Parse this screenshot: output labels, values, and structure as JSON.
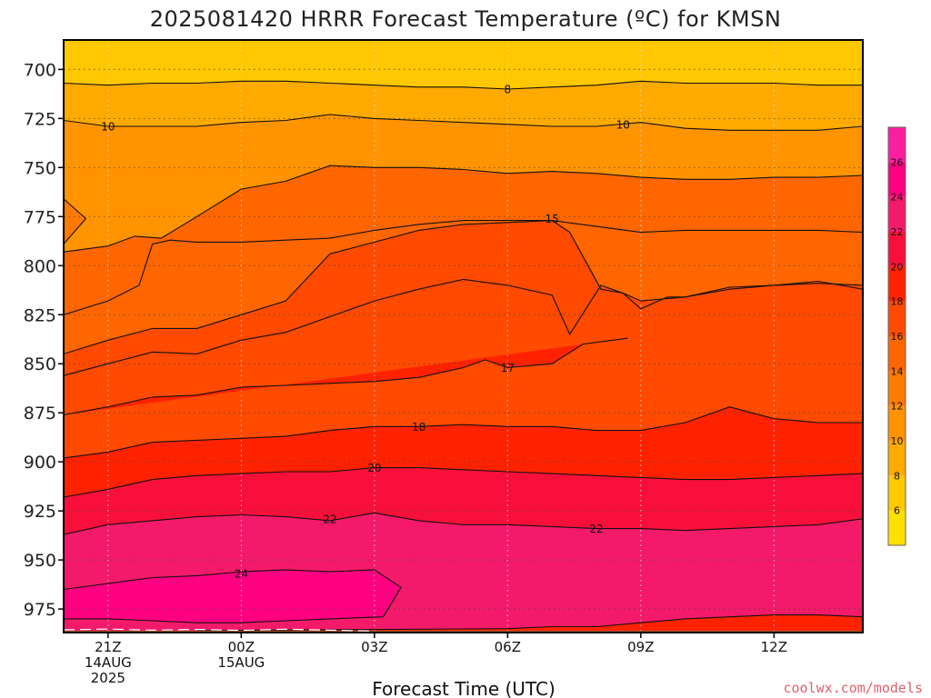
{
  "title": "2025081420 HRRR Forecast Temperature (ºC) for KMSN",
  "credit": "coolwx.com/models",
  "chart_data": {
    "type": "heatmap",
    "title": "2025081420 HRRR Forecast Temperature (ºC) for KMSN",
    "xlabel": "Forecast Time (UTC)",
    "ylabel": "",
    "y_axis_type": "pressure (hPa), inverted",
    "x_ticks": [
      {
        "hour": 1,
        "lines": [
          "21Z",
          "14AUG",
          "2025"
        ]
      },
      {
        "hour": 4,
        "lines": [
          "00Z",
          "15AUG"
        ]
      },
      {
        "hour": 7,
        "lines": [
          "03Z"
        ]
      },
      {
        "hour": 10,
        "lines": [
          "06Z"
        ]
      },
      {
        "hour": 13,
        "lines": [
          "09Z"
        ]
      },
      {
        "hour": 16,
        "lines": [
          "12Z"
        ]
      }
    ],
    "xlim": [
      0,
      18
    ],
    "y_ticks": [
      700,
      725,
      750,
      775,
      800,
      825,
      850,
      875,
      900,
      925,
      950,
      975
    ],
    "ylim": [
      987,
      685
    ],
    "grid": true,
    "ground_color": "#a0522d",
    "colorbar": {
      "ticks": [
        6,
        8,
        10,
        12,
        14,
        16,
        18,
        20,
        22,
        24,
        26
      ],
      "range": [
        4,
        28
      ],
      "bins": [
        {
          "from": 4,
          "to": 6,
          "color": "#ffe000"
        },
        {
          "from": 6,
          "to": 8,
          "color": "#ffc800"
        },
        {
          "from": 8,
          "to": 10,
          "color": "#ffaa00"
        },
        {
          "from": 10,
          "to": 12,
          "color": "#ff9400"
        },
        {
          "from": 12,
          "to": 14,
          "color": "#ff7a00"
        },
        {
          "from": 14,
          "to": 16,
          "color": "#ff6600"
        },
        {
          "from": 16,
          "to": 18,
          "color": "#ff4a00"
        },
        {
          "from": 18,
          "to": 20,
          "color": "#ff2200"
        },
        {
          "from": 20,
          "to": 22,
          "color": "#f8103a"
        },
        {
          "from": 22,
          "to": 24,
          "color": "#f41a6a"
        },
        {
          "from": 24,
          "to": 26,
          "color": "#ff0080"
        },
        {
          "from": 26,
          "to": 28,
          "color": "#ff1ea0"
        }
      ]
    },
    "contours": [
      {
        "level": 8,
        "points": [
          [
            0,
            707
          ],
          [
            1,
            708
          ],
          [
            2,
            707
          ],
          [
            3,
            707
          ],
          [
            4,
            706
          ],
          [
            5,
            706
          ],
          [
            6,
            707
          ],
          [
            7,
            708
          ],
          [
            8,
            709
          ],
          [
            9,
            709
          ],
          [
            10,
            710
          ],
          [
            11,
            709
          ],
          [
            12,
            708
          ],
          [
            13,
            706
          ],
          [
            14,
            707
          ],
          [
            15,
            707
          ],
          [
            16,
            707
          ],
          [
            17,
            708
          ],
          [
            18,
            708
          ]
        ],
        "labels": [
          {
            "x": 10,
            "y": 710
          }
        ]
      },
      {
        "level": 10,
        "points": [
          [
            0,
            726
          ],
          [
            1,
            729
          ],
          [
            2,
            729
          ],
          [
            3,
            729
          ],
          [
            4,
            727
          ],
          [
            5,
            726
          ],
          [
            6,
            723
          ],
          [
            7,
            725
          ],
          [
            8,
            726
          ],
          [
            9,
            727
          ],
          [
            10,
            728
          ],
          [
            11,
            729
          ],
          [
            12,
            729
          ],
          [
            13,
            727
          ],
          [
            14,
            730
          ],
          [
            15,
            731
          ],
          [
            16,
            731
          ],
          [
            17,
            731
          ],
          [
            18,
            729
          ]
        ],
        "labels": [
          {
            "x": 1,
            "y": 729
          },
          {
            "x": 12.6,
            "y": 728
          }
        ]
      },
      {
        "level": 14,
        "points": [
          [
            0,
            793
          ],
          [
            1,
            790
          ],
          [
            1.6,
            785
          ],
          [
            2.2,
            786
          ],
          [
            3,
            775
          ],
          [
            4,
            761
          ],
          [
            5,
            757
          ],
          [
            6,
            749
          ],
          [
            7,
            750
          ],
          [
            8,
            750
          ],
          [
            9,
            751
          ],
          [
            10,
            753
          ],
          [
            11,
            752
          ],
          [
            12,
            753
          ],
          [
            13,
            755
          ],
          [
            14,
            756
          ],
          [
            15,
            756
          ],
          [
            16,
            755
          ],
          [
            17,
            755
          ],
          [
            18,
            754
          ]
        ],
        "labels": []
      },
      {
        "level": 14,
        "points": [
          [
            0,
            766
          ],
          [
            0.5,
            776
          ],
          [
            0,
            789
          ]
        ],
        "labels": []
      },
      {
        "level": 15,
        "points": [
          [
            0,
            825
          ],
          [
            1,
            818
          ],
          [
            1.7,
            810
          ],
          [
            2,
            789
          ],
          [
            2.4,
            787
          ],
          [
            3,
            788
          ],
          [
            4,
            788
          ],
          [
            5,
            787
          ],
          [
            6,
            786
          ],
          [
            7,
            782
          ],
          [
            8,
            779
          ],
          [
            9,
            777
          ],
          [
            10,
            777
          ],
          [
            11,
            777
          ],
          [
            12,
            780
          ],
          [
            13,
            783
          ],
          [
            14,
            782
          ],
          [
            15,
            782
          ],
          [
            16,
            782
          ],
          [
            17,
            782
          ],
          [
            18,
            783
          ]
        ],
        "labels": [
          {
            "x": 11,
            "y": 776
          }
        ]
      },
      {
        "level": 16,
        "points": [
          [
            0,
            845
          ],
          [
            1,
            838
          ],
          [
            2,
            832
          ],
          [
            3,
            832
          ],
          [
            4,
            825
          ],
          [
            5,
            818
          ],
          [
            6,
            794
          ],
          [
            7,
            788
          ],
          [
            8,
            782
          ],
          [
            9,
            779
          ],
          [
            10,
            778
          ],
          [
            11,
            777
          ],
          [
            11.4,
            783
          ],
          [
            12.1,
            812
          ],
          [
            12.6,
            814
          ],
          [
            13,
            822
          ],
          [
            13.6,
            816
          ],
          [
            14,
            816
          ],
          [
            15,
            811
          ],
          [
            16,
            810
          ],
          [
            17,
            808
          ],
          [
            18,
            812
          ]
        ],
        "labels": []
      },
      {
        "level": 17,
        "points": [
          [
            0,
            856
          ],
          [
            1,
            850
          ],
          [
            2,
            844
          ],
          [
            3,
            845
          ],
          [
            4,
            838
          ],
          [
            5,
            834
          ],
          [
            6,
            826
          ],
          [
            7,
            818
          ],
          [
            8,
            812
          ],
          [
            9,
            807
          ],
          [
            10,
            810
          ],
          [
            11,
            815
          ],
          [
            11.4,
            835
          ],
          [
            12.1,
            810
          ],
          [
            12.6,
            814
          ],
          [
            13,
            818
          ],
          [
            14,
            816
          ],
          [
            15,
            812
          ],
          [
            16,
            810
          ],
          [
            17,
            809
          ],
          [
            18,
            810
          ]
        ],
        "labels": [
          {
            "x": 10,
            "y": 852
          }
        ]
      },
      {
        "level": 18,
        "points": [
          [
            0,
            876
          ],
          [
            1,
            872
          ],
          [
            2,
            867
          ],
          [
            3,
            866
          ],
          [
            4,
            862
          ],
          [
            5,
            861
          ],
          [
            6,
            860
          ],
          [
            7,
            859
          ],
          [
            8,
            857
          ],
          [
            9,
            852
          ],
          [
            9.5,
            848
          ],
          [
            10,
            852
          ],
          [
            11,
            850
          ],
          [
            11.7,
            840
          ],
          [
            12.7,
            837
          ]
        ],
        "labels": []
      },
      {
        "level": 18,
        "points": [
          [
            0,
            898
          ],
          [
            1,
            895
          ],
          [
            2,
            890
          ],
          [
            3,
            889
          ],
          [
            4,
            888
          ],
          [
            5,
            887
          ],
          [
            6,
            884
          ],
          [
            7,
            882
          ],
          [
            8,
            882
          ],
          [
            9,
            881
          ],
          [
            10,
            882
          ],
          [
            11,
            882
          ],
          [
            12,
            884
          ],
          [
            13,
            884
          ],
          [
            14,
            880
          ],
          [
            15,
            872
          ],
          [
            16,
            878
          ],
          [
            17,
            880
          ],
          [
            18,
            880
          ]
        ],
        "labels": [
          {
            "x": 8,
            "y": 882
          }
        ]
      },
      {
        "level": 20,
        "points": [
          [
            0,
            918
          ],
          [
            1,
            914
          ],
          [
            2,
            909
          ],
          [
            3,
            907
          ],
          [
            4,
            906
          ],
          [
            5,
            905
          ],
          [
            6,
            905
          ],
          [
            7,
            903
          ],
          [
            8,
            903
          ],
          [
            9,
            904
          ],
          [
            10,
            905
          ],
          [
            11,
            906
          ],
          [
            12,
            907
          ],
          [
            13,
            908
          ],
          [
            14,
            909
          ],
          [
            15,
            909
          ],
          [
            16,
            908
          ],
          [
            17,
            907
          ],
          [
            18,
            906
          ]
        ],
        "labels": [
          {
            "x": 7,
            "y": 903
          }
        ]
      },
      {
        "level": 22,
        "points": [
          [
            0,
            937
          ],
          [
            1,
            932
          ],
          [
            2,
            930
          ],
          [
            3,
            928
          ],
          [
            4,
            927
          ],
          [
            5,
            928
          ],
          [
            6,
            930
          ],
          [
            7,
            926
          ],
          [
            8,
            930
          ],
          [
            9,
            932
          ],
          [
            10,
            932
          ],
          [
            11,
            933
          ],
          [
            12,
            934
          ],
          [
            13,
            934
          ],
          [
            14,
            935
          ],
          [
            15,
            934
          ],
          [
            16,
            933
          ],
          [
            17,
            932
          ],
          [
            18,
            929
          ]
        ],
        "labels": [
          {
            "x": 6,
            "y": 929
          },
          {
            "x": 12,
            "y": 934
          }
        ]
      },
      {
        "level": 24,
        "points": [
          [
            0,
            965
          ],
          [
            1,
            962
          ],
          [
            2,
            959
          ],
          [
            3,
            958
          ],
          [
            4,
            956
          ],
          [
            5,
            955
          ],
          [
            6,
            956
          ],
          [
            7,
            955
          ],
          [
            7.6,
            964
          ],
          [
            7.2,
            979
          ],
          [
            6,
            980
          ],
          [
            5,
            981
          ],
          [
            4,
            982
          ],
          [
            3,
            982
          ],
          [
            2,
            981
          ],
          [
            1,
            980
          ],
          [
            0,
            980
          ]
        ],
        "labels": [
          {
            "x": 4,
            "y": 957
          }
        ]
      },
      {
        "level": 22.5,
        "points": [
          [
            3,
            986
          ],
          [
            10,
            985
          ],
          [
            11,
            984
          ],
          [
            12,
            984
          ],
          [
            13,
            982
          ],
          [
            14,
            980
          ],
          [
            15,
            979
          ],
          [
            16,
            978
          ],
          [
            17,
            978
          ],
          [
            18,
            979
          ]
        ],
        "labels": []
      }
    ]
  }
}
